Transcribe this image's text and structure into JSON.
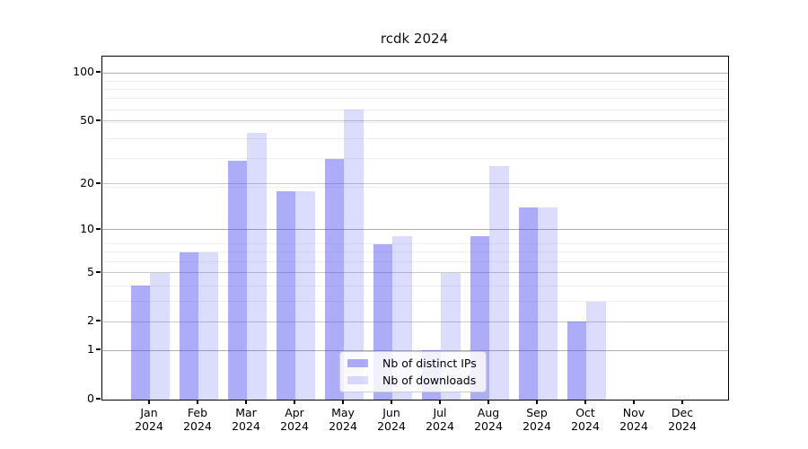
{
  "chart_data": {
    "type": "bar",
    "title": "rcdk 2024",
    "categories": [
      "Jan",
      "Feb",
      "Mar",
      "Apr",
      "May",
      "Jun",
      "Jul",
      "Aug",
      "Sep",
      "Oct",
      "Nov",
      "Dec"
    ],
    "year_label": "2024",
    "series": [
      {
        "name": "Nb of distinct IPs",
        "color": "#a9a9f4",
        "rgba": "rgba(70,70,240,0.45)",
        "values": [
          4,
          7,
          28,
          18,
          29,
          8,
          1,
          9,
          14,
          2,
          0,
          0
        ]
      },
      {
        "name": "Nb of downloads",
        "color": "#dcdcf9",
        "rgba": "rgba(70,70,240,0.19)",
        "values": [
          5,
          7,
          42,
          18,
          59,
          9,
          5,
          26,
          14,
          3,
          0,
          0
        ]
      }
    ],
    "y_axis": {
      "scale": "log1p",
      "ticks": [
        0,
        1,
        2,
        5,
        10,
        20,
        50,
        100
      ],
      "decade_ticks": [
        1,
        10,
        100
      ],
      "max": 100
    },
    "x_axis": {
      "label_lines": 2
    },
    "grid": true,
    "legend": {
      "position": "bottom-center"
    },
    "colors": {
      "background": "#ffffff",
      "axis": "#000000",
      "major_grid": "#c9c9c9",
      "minor_grid": "#efefef"
    }
  }
}
